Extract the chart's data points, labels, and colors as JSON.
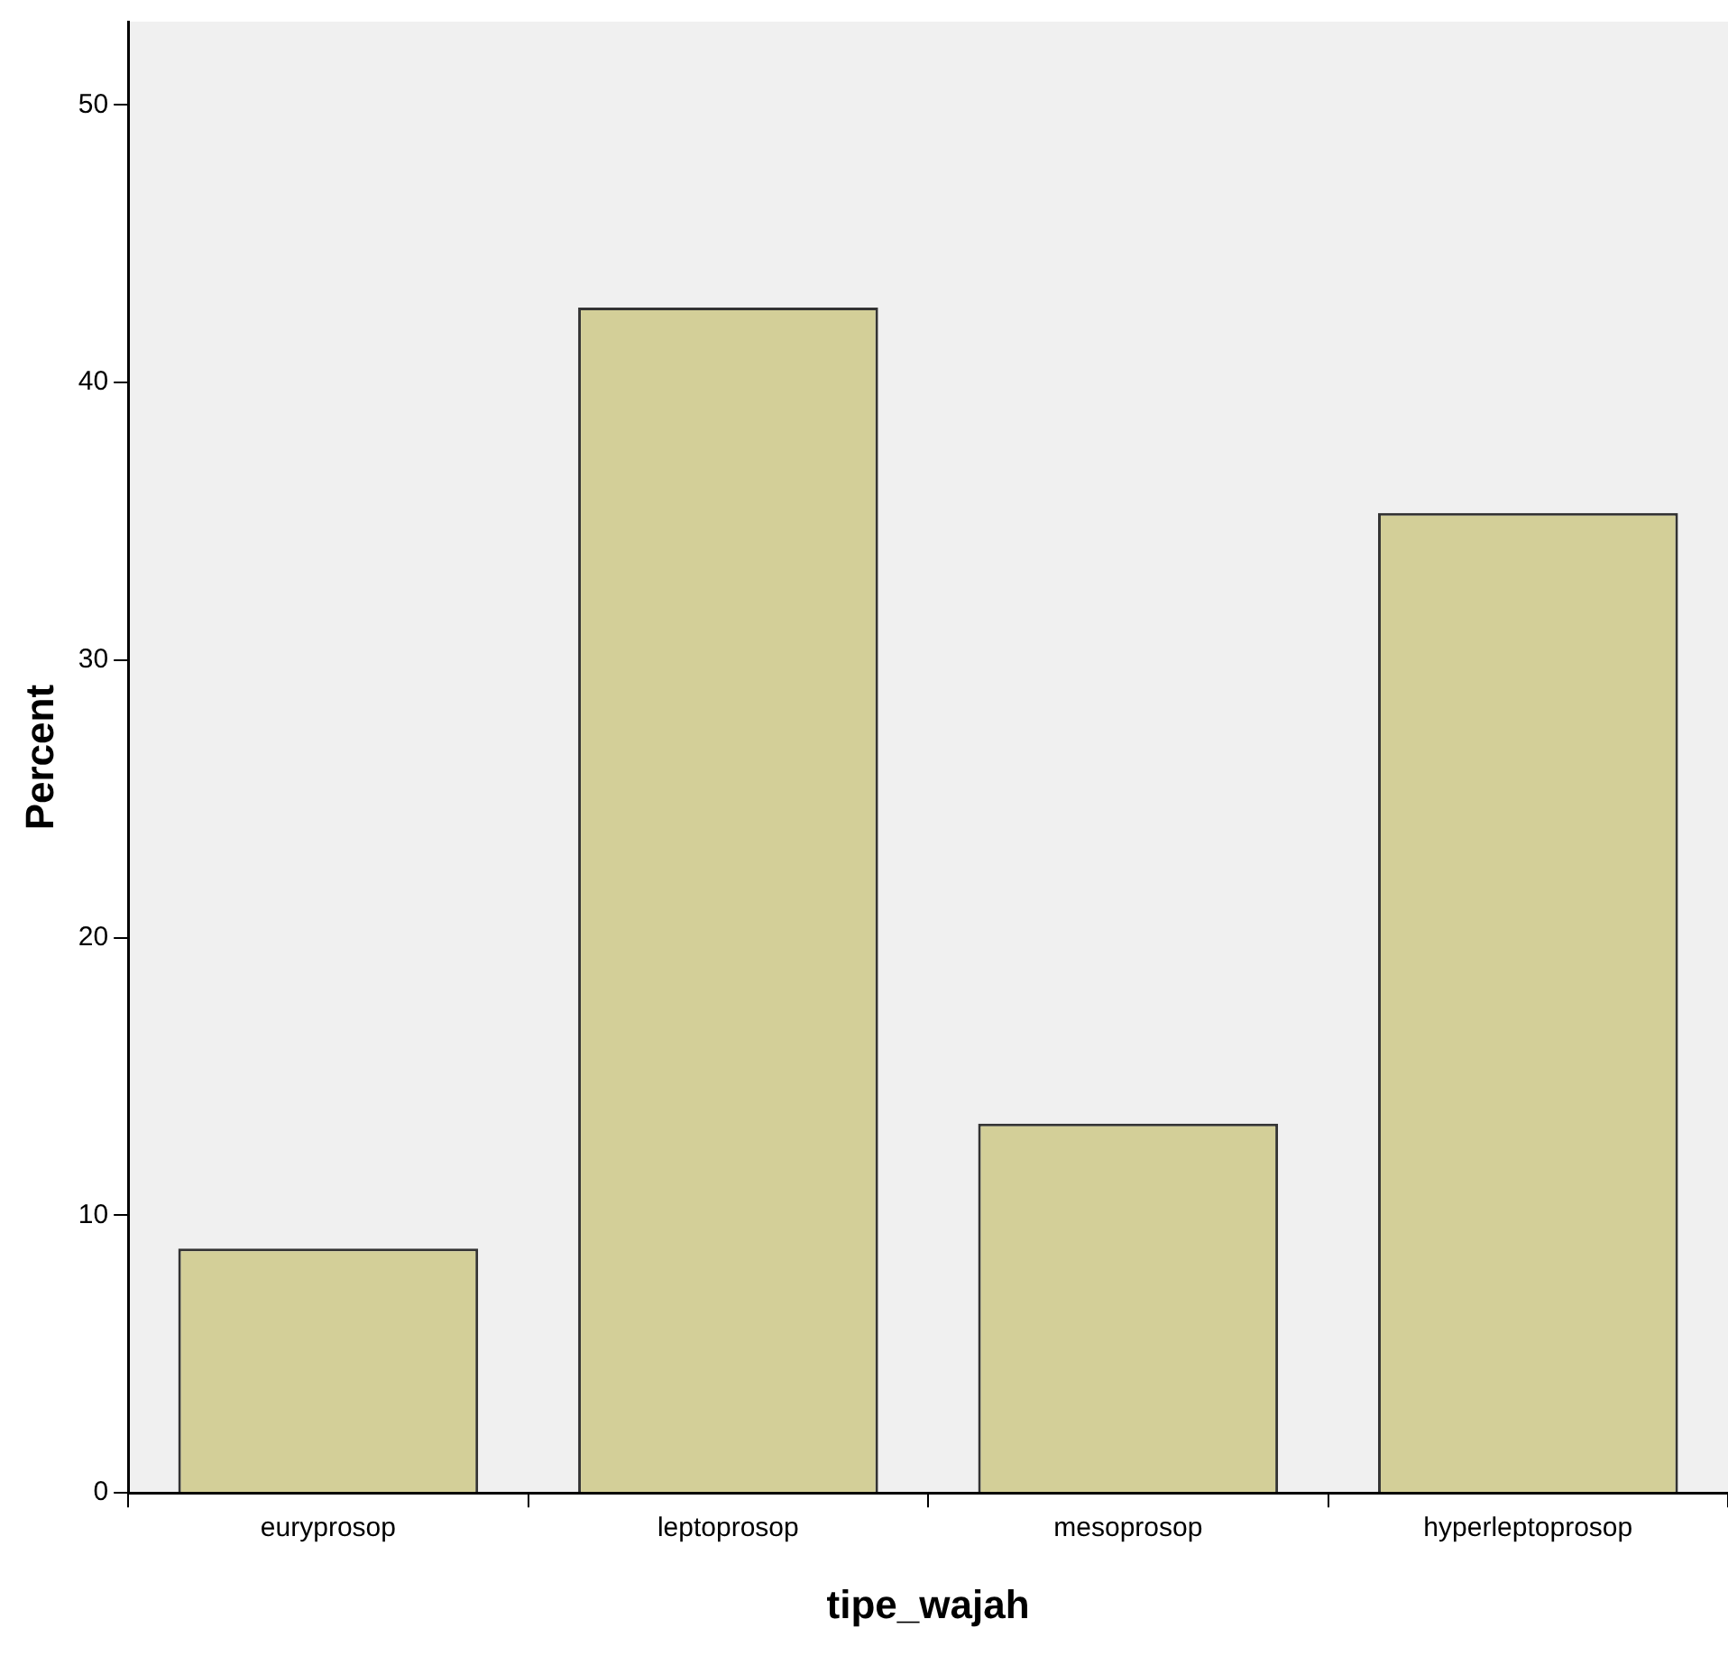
{
  "chart_data": {
    "type": "bar",
    "xlabel": "tipe_wajah",
    "ylabel": "Percent",
    "categories": [
      "euryprosop",
      "leptoprosop",
      "mesoprosop",
      "hyperleptoprosop"
    ],
    "values": [
      8.8,
      42.7,
      13.3,
      35.3
    ],
    "color": "#d3cf98",
    "ylim": [
      0,
      53
    ],
    "yticks": [
      0,
      10,
      20,
      30,
      40,
      50
    ],
    "grid": false
  }
}
